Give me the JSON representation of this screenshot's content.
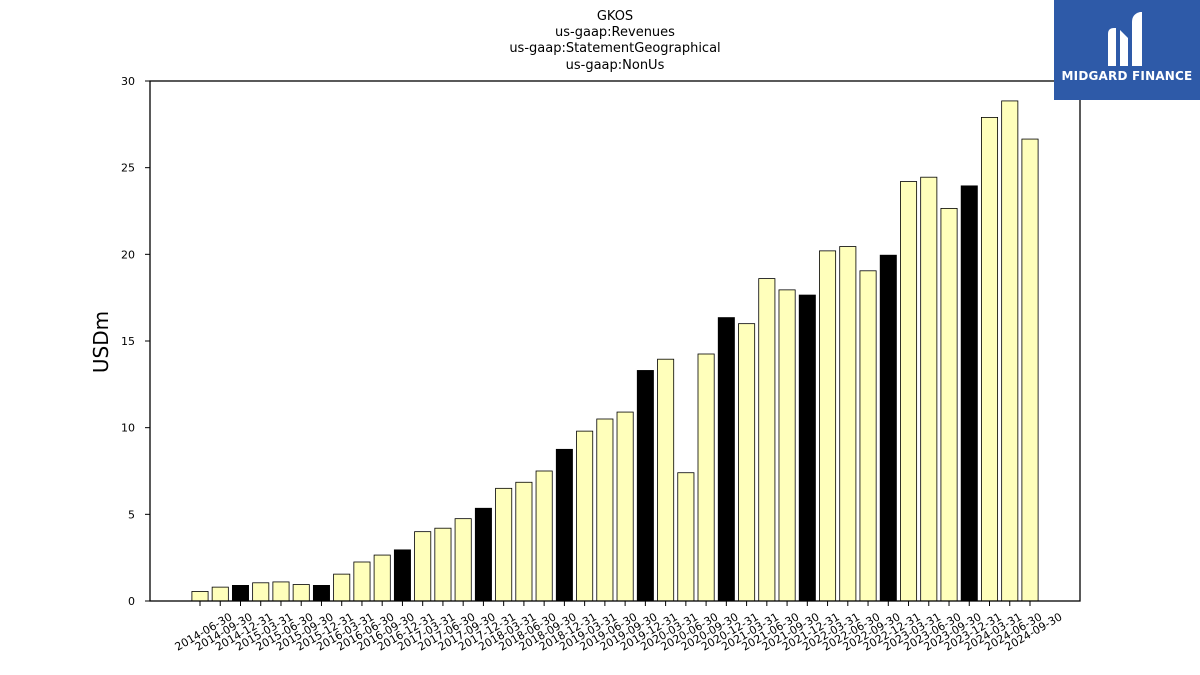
{
  "chart_data": {
    "type": "bar",
    "title_lines": [
      "GKOS",
      "us-gaap:Revenues",
      "us-gaap:StatementGeographical",
      "us-gaap:NonUs"
    ],
    "ylabel": "USDm",
    "xlabel": "",
    "ylim": [
      0,
      30
    ],
    "yticks": [
      0,
      5,
      10,
      15,
      20,
      25,
      30
    ],
    "categories": [
      "2014-06-30",
      "2014-09-30",
      "2014-12-31",
      "2015-03-31",
      "2015-06-30",
      "2015-09-30",
      "2015-12-31",
      "2016-03-31",
      "2016-06-30",
      "2016-09-30",
      "2016-12-31",
      "2017-03-31",
      "2017-06-30",
      "2017-09-30",
      "2017-12-31",
      "2018-03-31",
      "2018-06-30",
      "2018-09-30",
      "2018-12-31",
      "2019-03-31",
      "2019-06-30",
      "2019-09-30",
      "2019-12-31",
      "2020-03-31",
      "2020-06-30",
      "2020-09-30",
      "2020-12-31",
      "2021-03-31",
      "2021-06-30",
      "2021-09-30",
      "2021-12-31",
      "2022-03-31",
      "2022-06-30",
      "2022-09-30",
      "2022-12-31",
      "2023-03-31",
      "2023-06-30",
      "2023-09-30",
      "2023-12-31",
      "2024-03-31",
      "2024-06-30",
      "2024-09-30"
    ],
    "values": [
      0.55,
      0.8,
      0.9,
      1.05,
      1.1,
      0.95,
      0.9,
      1.55,
      2.25,
      2.65,
      2.95,
      4.0,
      4.2,
      4.75,
      5.35,
      6.5,
      6.85,
      7.5,
      8.75,
      9.8,
      10.5,
      10.9,
      13.3,
      13.95,
      7.4,
      14.25,
      16.35,
      16.0,
      18.6,
      17.95,
      17.65,
      20.2,
      20.45,
      19.05,
      19.95,
      24.2,
      24.45,
      22.65,
      23.95,
      27.9,
      28.85,
      26.65
    ],
    "highlight": [
      false,
      false,
      true,
      false,
      false,
      false,
      true,
      false,
      false,
      false,
      true,
      false,
      false,
      false,
      true,
      false,
      false,
      false,
      true,
      false,
      false,
      false,
      true,
      false,
      false,
      false,
      true,
      false,
      false,
      false,
      true,
      false,
      false,
      false,
      true,
      false,
      false,
      false,
      true,
      false,
      false,
      false
    ],
    "colors": {
      "bar_fill": "#ffffbb",
      "highlight_fill": "#000000",
      "edge": "#000000"
    },
    "grid": false,
    "legend": "none"
  },
  "logo": {
    "text": "MIDGARD FINANCE",
    "background": "#2e5aa8",
    "icon": "midgard-logo-icon"
  }
}
